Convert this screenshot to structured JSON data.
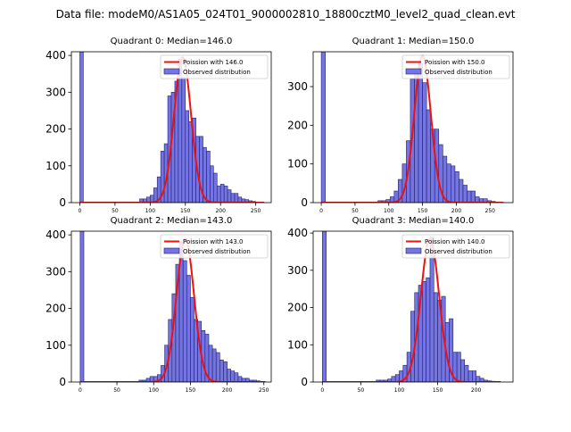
{
  "chart_data": {
    "suptitle": "Data file: modeM0/AS1A05_024T01_9000002810_18800cztM0_level2_quad_clean.evt",
    "panels": [
      {
        "type": "bar",
        "title": "Quadrant 0: Median=146.0",
        "xlim": [
          -12,
          272
        ],
        "ylim": [
          0,
          410
        ],
        "xticks": [
          0,
          50,
          100,
          150,
          200,
          250
        ],
        "yticks": [
          0,
          100,
          200,
          300,
          400
        ],
        "legend": {
          "line_label": "Poission with 146.0",
          "bar_label": "Observed distribution",
          "placement": "upper-right"
        },
        "bin_width": 5,
        "bins": [
          [
            0,
            410
          ],
          [
            85,
            10
          ],
          [
            90,
            10
          ],
          [
            95,
            15
          ],
          [
            100,
            20
          ],
          [
            105,
            40
          ],
          [
            110,
            70
          ],
          [
            115,
            140
          ],
          [
            120,
            160
          ],
          [
            125,
            290
          ],
          [
            130,
            300
          ],
          [
            135,
            330
          ],
          [
            140,
            390
          ],
          [
            145,
            340
          ],
          [
            150,
            250
          ],
          [
            155,
            220
          ],
          [
            160,
            230
          ],
          [
            165,
            180
          ],
          [
            170,
            180
          ],
          [
            175,
            150
          ],
          [
            180,
            140
          ],
          [
            185,
            100
          ],
          [
            190,
            80
          ],
          [
            195,
            45
          ],
          [
            200,
            50
          ],
          [
            205,
            45
          ],
          [
            210,
            35
          ],
          [
            215,
            25
          ],
          [
            220,
            25
          ],
          [
            225,
            15
          ],
          [
            230,
            10
          ],
          [
            235,
            8
          ],
          [
            240,
            5
          ],
          [
            245,
            3
          ]
        ],
        "poisson": {
          "mean": 146.0,
          "peak": 395,
          "x_range": [
            0,
            262
          ]
        }
      },
      {
        "type": "bar",
        "title": "Quadrant 1: Median=150.0",
        "xlim": [
          -12,
          284
        ],
        "ylim": [
          0,
          390
        ],
        "xticks": [
          0,
          50,
          100,
          150,
          200,
          250
        ],
        "yticks": [
          0,
          100,
          200,
          300
        ],
        "legend": {
          "line_label": "Poission with 150.0",
          "bar_label": "Observed distribution",
          "placement": "upper-right"
        },
        "bin_width": 6,
        "bins": [
          [
            0,
            390
          ],
          [
            84,
            5
          ],
          [
            90,
            5
          ],
          [
            96,
            8
          ],
          [
            102,
            15
          ],
          [
            108,
            30
          ],
          [
            114,
            60
          ],
          [
            120,
            100
          ],
          [
            126,
            160
          ],
          [
            132,
            320
          ],
          [
            138,
            340
          ],
          [
            144,
            360
          ],
          [
            150,
            310
          ],
          [
            156,
            240
          ],
          [
            162,
            190
          ],
          [
            168,
            190
          ],
          [
            174,
            150
          ],
          [
            180,
            120
          ],
          [
            186,
            100
          ],
          [
            192,
            95
          ],
          [
            198,
            80
          ],
          [
            204,
            60
          ],
          [
            210,
            45
          ],
          [
            216,
            30
          ],
          [
            222,
            30
          ],
          [
            228,
            15
          ],
          [
            234,
            10
          ],
          [
            240,
            10
          ],
          [
            246,
            5
          ],
          [
            252,
            3
          ]
        ],
        "poisson": {
          "mean": 150.0,
          "peak": 380,
          "x_range": [
            0,
            270
          ]
        }
      },
      {
        "type": "bar",
        "title": "Quadrant 2: Median=143.0",
        "xlim": [
          -12,
          260
        ],
        "ylim": [
          0,
          410
        ],
        "xticks": [
          0,
          50,
          100,
          150,
          200,
          250
        ],
        "yticks": [
          0,
          100,
          200,
          300,
          400
        ],
        "legend": {
          "line_label": "Poission with 143.0",
          "bar_label": "Observed distribution",
          "placement": "upper-right"
        },
        "bin_width": 5,
        "bins": [
          [
            0,
            410
          ],
          [
            80,
            5
          ],
          [
            85,
            5
          ],
          [
            90,
            10
          ],
          [
            95,
            15
          ],
          [
            100,
            15
          ],
          [
            105,
            20
          ],
          [
            110,
            45
          ],
          [
            115,
            100
          ],
          [
            120,
            170
          ],
          [
            125,
            240
          ],
          [
            130,
            320
          ],
          [
            135,
            380
          ],
          [
            140,
            330
          ],
          [
            145,
            290
          ],
          [
            150,
            230
          ],
          [
            155,
            170
          ],
          [
            160,
            165
          ],
          [
            165,
            140
          ],
          [
            170,
            130
          ],
          [
            175,
            100
          ],
          [
            180,
            90
          ],
          [
            185,
            80
          ],
          [
            190,
            60
          ],
          [
            195,
            55
          ],
          [
            200,
            35
          ],
          [
            205,
            30
          ],
          [
            210,
            25
          ],
          [
            215,
            15
          ],
          [
            220,
            10
          ],
          [
            225,
            10
          ],
          [
            230,
            5
          ],
          [
            235,
            5
          ],
          [
            240,
            3
          ]
        ],
        "poisson": {
          "mean": 143.0,
          "peak": 390,
          "x_range": [
            0,
            252
          ]
        }
      },
      {
        "type": "bar",
        "title": "Quadrant 3: Median=140.0",
        "xlim": [
          -12,
          248
        ],
        "ylim": [
          0,
          405
        ],
        "xticks": [
          0,
          50,
          100,
          150,
          200
        ],
        "yticks": [
          0,
          100,
          200,
          300,
          400
        ],
        "legend": {
          "line_label": "Poission with 140.0",
          "bar_label": "Observed distribution",
          "placement": "upper-right"
        },
        "bin_width": 5,
        "bins": [
          [
            0,
            405
          ],
          [
            70,
            5
          ],
          [
            75,
            5
          ],
          [
            80,
            5
          ],
          [
            85,
            8
          ],
          [
            90,
            15
          ],
          [
            95,
            20
          ],
          [
            100,
            30
          ],
          [
            105,
            45
          ],
          [
            110,
            80
          ],
          [
            115,
            190
          ],
          [
            120,
            240
          ],
          [
            125,
            260
          ],
          [
            130,
            270
          ],
          [
            135,
            280
          ],
          [
            140,
            390
          ],
          [
            145,
            240
          ],
          [
            150,
            220
          ],
          [
            155,
            230
          ],
          [
            160,
            160
          ],
          [
            165,
            170
          ],
          [
            170,
            80
          ],
          [
            175,
            80
          ],
          [
            180,
            60
          ],
          [
            185,
            45
          ],
          [
            190,
            30
          ],
          [
            195,
            30
          ],
          [
            200,
            15
          ],
          [
            205,
            10
          ],
          [
            210,
            5
          ],
          [
            215,
            3
          ],
          [
            220,
            2
          ]
        ],
        "poisson": {
          "mean": 140.0,
          "peak": 385,
          "x_range": [
            0,
            232
          ]
        }
      }
    ],
    "colors": {
      "bar_fill": "#7474e3",
      "bar_edge": "#222266",
      "line": "#ee1111"
    }
  }
}
